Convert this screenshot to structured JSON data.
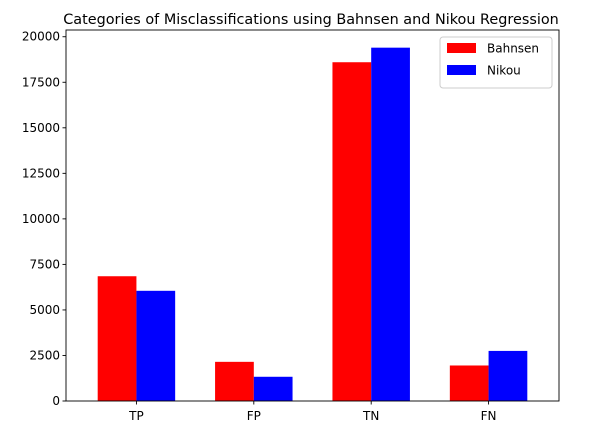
{
  "chart_data": {
    "type": "bar",
    "title": "Categories of Misclassifications using Bahnsen and Nikou Regression",
    "xlabel": "",
    "ylabel": "",
    "categories": [
      "TP",
      "FP",
      "TN",
      "FN"
    ],
    "series": [
      {
        "name": "Bahnsen",
        "color": "#ff0000",
        "values": [
          6850,
          2150,
          18600,
          1950
        ]
      },
      {
        "name": "Nikou",
        "color": "#0000ff",
        "values": [
          6050,
          1330,
          19400,
          2750
        ]
      }
    ],
    "ylim": [
      0,
      20370
    ],
    "yticks": [
      0,
      2500,
      5000,
      7500,
      10000,
      12500,
      15000,
      17500,
      20000
    ],
    "grid": false,
    "legend_position": "top-right"
  }
}
